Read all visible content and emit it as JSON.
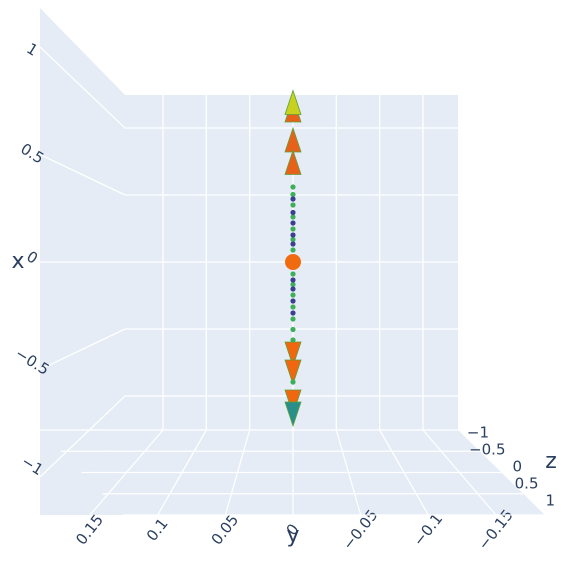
{
  "chart_data": {
    "type": "scatter3d",
    "xaxis_title": "x",
    "yaxis_title": "y",
    "zaxis_title": "z",
    "xlim": [
      -1,
      1
    ],
    "xticks": [
      1,
      0.5,
      0,
      {
        "value": -0.5,
        "label": "−0.5"
      },
      {
        "value": -1,
        "label": "−1"
      }
    ],
    "ylim": [
      -0.15,
      0.15
    ],
    "yticks": [
      0.15,
      0.1,
      0.05,
      0,
      {
        "value": -0.05,
        "label": "−0.05"
      },
      {
        "value": -0.1,
        "label": "−0.1"
      },
      {
        "value": -0.15,
        "label": "−0.15"
      }
    ],
    "zlim": [
      -1,
      1
    ],
    "zticks": [
      {
        "value": -1,
        "label": "−1"
      },
      {
        "value": -0.5,
        "label": "−0.5"
      },
      0,
      0.5,
      1
    ],
    "grid": true,
    "series": [
      {
        "marker": "cone-up",
        "color": "#e8611a",
        "values": [
          1,
          0.8,
          0.65
        ]
      },
      {
        "marker": "cone-up",
        "color": "#c8d21e",
        "values": [
          1.05
        ]
      },
      {
        "marker": "cone-down",
        "color": "#f0670f",
        "values": [
          -0.6,
          -0.72,
          -0.92
        ]
      },
      {
        "marker": "cone-down",
        "color": "#2a8f8a",
        "values": [
          -1
        ]
      },
      {
        "marker": "sphere",
        "color": "#f06a0f",
        "values": [
          0
        ]
      },
      {
        "marker": "point",
        "color": "#3fae5a",
        "values": [
          0.5,
          0.45,
          0.38,
          0.3,
          0.22,
          0.15,
          0.08,
          -0.08,
          -0.15,
          -0.22,
          -0.3,
          -0.38,
          -0.45,
          -0.52,
          -0.8
        ]
      },
      {
        "marker": "point",
        "color": "#3b3f8f",
        "values": [
          0.42,
          0.33,
          0.26,
          0.18,
          0.12,
          -0.12,
          -0.18,
          -0.26,
          -0.34
        ]
      }
    ]
  }
}
